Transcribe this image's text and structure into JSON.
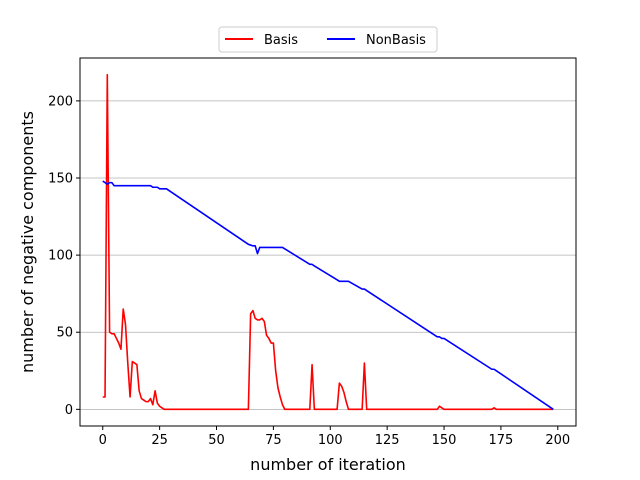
{
  "chart_data": {
    "type": "line",
    "xlabel": "number of iteration",
    "ylabel": "number of negative components",
    "xlim": [
      -10,
      208
    ],
    "ylim": [
      -10.8,
      227.8
    ],
    "xticks": [
      0,
      25,
      50,
      75,
      100,
      125,
      150,
      175,
      200
    ],
    "yticks": [
      0,
      50,
      100,
      150,
      200
    ],
    "grid": "y-major",
    "legend_position": "top-center",
    "series": [
      {
        "name": "Basis",
        "color": "#ff0000",
        "points": [
          [
            0,
            8
          ],
          [
            1,
            8
          ],
          [
            2,
            217
          ],
          [
            3,
            50
          ],
          [
            4,
            49
          ],
          [
            5,
            49
          ],
          [
            6,
            46
          ],
          [
            7,
            43
          ],
          [
            8,
            39
          ],
          [
            9,
            65
          ],
          [
            10,
            55
          ],
          [
            11,
            30
          ],
          [
            12,
            8
          ],
          [
            13,
            31
          ],
          [
            14,
            30
          ],
          [
            15,
            29
          ],
          [
            16,
            12
          ],
          [
            17,
            7
          ],
          [
            18,
            6
          ],
          [
            19,
            5
          ],
          [
            20,
            5
          ],
          [
            21,
            7
          ],
          [
            22,
            3
          ],
          [
            23,
            12
          ],
          [
            24,
            4
          ],
          [
            25,
            2
          ],
          [
            26,
            1
          ],
          [
            27,
            0
          ],
          [
            64,
            0
          ],
          [
            65,
            62
          ],
          [
            66,
            64
          ],
          [
            67,
            59
          ],
          [
            68,
            58
          ],
          [
            69,
            58
          ],
          [
            70,
            59
          ],
          [
            71,
            57
          ],
          [
            72,
            48
          ],
          [
            73,
            46
          ],
          [
            74,
            43
          ],
          [
            75,
            43
          ],
          [
            76,
            25
          ],
          [
            77,
            14
          ],
          [
            78,
            8
          ],
          [
            79,
            3
          ],
          [
            80,
            0
          ],
          [
            91,
            0
          ],
          [
            92,
            29
          ],
          [
            93,
            0
          ],
          [
            103,
            0
          ],
          [
            104,
            17
          ],
          [
            105,
            15
          ],
          [
            106,
            11
          ],
          [
            107,
            5
          ],
          [
            108,
            0
          ],
          [
            114,
            0
          ],
          [
            115,
            30
          ],
          [
            116,
            0
          ],
          [
            147,
            0
          ],
          [
            148,
            2
          ],
          [
            149,
            1
          ],
          [
            150,
            0
          ],
          [
            171,
            0
          ],
          [
            172,
            1
          ],
          [
            173,
            0
          ],
          [
            198,
            0
          ]
        ]
      },
      {
        "name": "NonBasis",
        "color": "#0000ff",
        "points": [
          [
            0,
            148
          ],
          [
            1,
            147
          ],
          [
            2,
            146
          ],
          [
            3,
            147
          ],
          [
            4,
            147
          ],
          [
            5,
            145
          ],
          [
            21,
            145
          ],
          [
            22,
            144
          ],
          [
            24,
            144
          ],
          [
            25,
            143
          ],
          [
            28,
            143
          ],
          [
            64,
            107
          ],
          [
            66,
            106
          ],
          [
            67,
            106
          ],
          [
            68,
            101
          ],
          [
            69,
            105
          ],
          [
            79,
            105
          ],
          [
            91,
            94
          ],
          [
            92,
            94
          ],
          [
            93,
            93
          ],
          [
            103,
            84
          ],
          [
            104,
            83
          ],
          [
            108,
            83
          ],
          [
            114,
            78
          ],
          [
            115,
            78
          ],
          [
            116,
            77
          ],
          [
            147,
            47
          ],
          [
            148,
            47
          ],
          [
            149,
            46
          ],
          [
            150,
            46
          ],
          [
            171,
            26
          ],
          [
            172,
            26
          ],
          [
            173,
            25
          ],
          [
            198,
            0
          ]
        ]
      }
    ]
  }
}
